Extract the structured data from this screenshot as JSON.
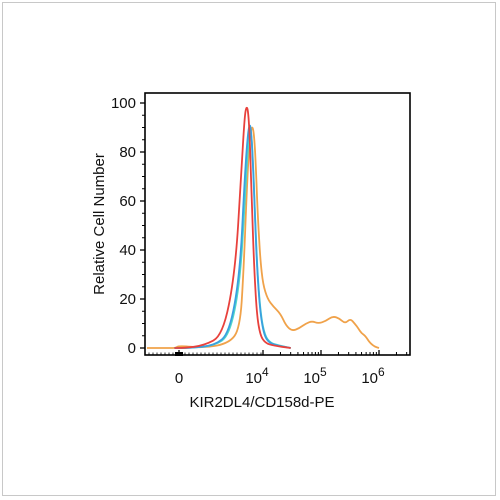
{
  "chart_data": {
    "type": "line",
    "xlabel": "KIR2DL4/CD158d-PE",
    "ylabel": "Relative Cell Number",
    "ylim": [
      0,
      100
    ],
    "x_scale": "biexponential",
    "y_ticks": [
      "0",
      "20",
      "40",
      "60",
      "80",
      "100"
    ],
    "x_ticks": [
      {
        "base": "0",
        "exp": ""
      },
      {
        "base": "10",
        "exp": "4"
      },
      {
        "base": "10",
        "exp": "5"
      },
      {
        "base": "10",
        "exp": "6"
      }
    ],
    "grid": false,
    "legend": "none",
    "series": [
      {
        "color": "#e8413c",
        "values_x": [
          -2000,
          500,
          1500,
          2500,
          3500,
          4200,
          4800,
          5200,
          5600,
          6000,
          6400,
          7000,
          7800,
          9000,
          11000,
          15000,
          30000
        ],
        "values_y": [
          0,
          0,
          1,
          5,
          30,
          70,
          94,
          99,
          96,
          82,
          60,
          34,
          14,
          5,
          2,
          1,
          0
        ]
      },
      {
        "color": "#3aa0e0",
        "values_x": [
          -2000,
          1000,
          2000,
          3000,
          4000,
          4800,
          5400,
          5900,
          6300,
          6800,
          7300,
          8000,
          9000,
          10500,
          13000,
          18000,
          30000
        ],
        "values_y": [
          0,
          0,
          1,
          6,
          30,
          68,
          86,
          92,
          88,
          72,
          52,
          30,
          14,
          5,
          2,
          1,
          0
        ]
      },
      {
        "color": "#4fd8c8",
        "values_x": [
          -2000,
          1000,
          2000,
          3000,
          4000,
          4900,
          5500,
          6000,
          6400,
          6900,
          7400,
          8100,
          9200,
          10800,
          13500,
          19000,
          30000
        ],
        "values_y": [
          0,
          0,
          1,
          5,
          26,
          62,
          82,
          89,
          86,
          70,
          50,
          29,
          13,
          5,
          2,
          1,
          0
        ]
      },
      {
        "color": "#f0a24a",
        "values_x": [
          -14000,
          -7000,
          -3500,
          -1500,
          0,
          1500,
          3000,
          4000,
          4600,
          5200,
          5800,
          6400,
          7000,
          7600,
          8200,
          9000,
          10000,
          12000,
          15000,
          20000,
          25000,
          32000,
          42000,
          55000,
          70000,
          90000,
          120000,
          160000,
          210000,
          260000,
          320000,
          380000,
          440000,
          500000,
          580000,
          700000,
          850000,
          1000000
        ],
        "values_y": [
          0,
          0,
          0,
          0,
          1,
          0,
          2,
          8,
          30,
          62,
          84,
          91,
          88,
          72,
          52,
          36,
          26,
          20,
          17,
          14,
          9,
          7,
          8,
          10,
          11,
          10,
          11,
          13,
          12,
          10,
          12,
          10,
          8,
          6,
          5,
          2,
          0.5,
          0
        ]
      }
    ]
  }
}
